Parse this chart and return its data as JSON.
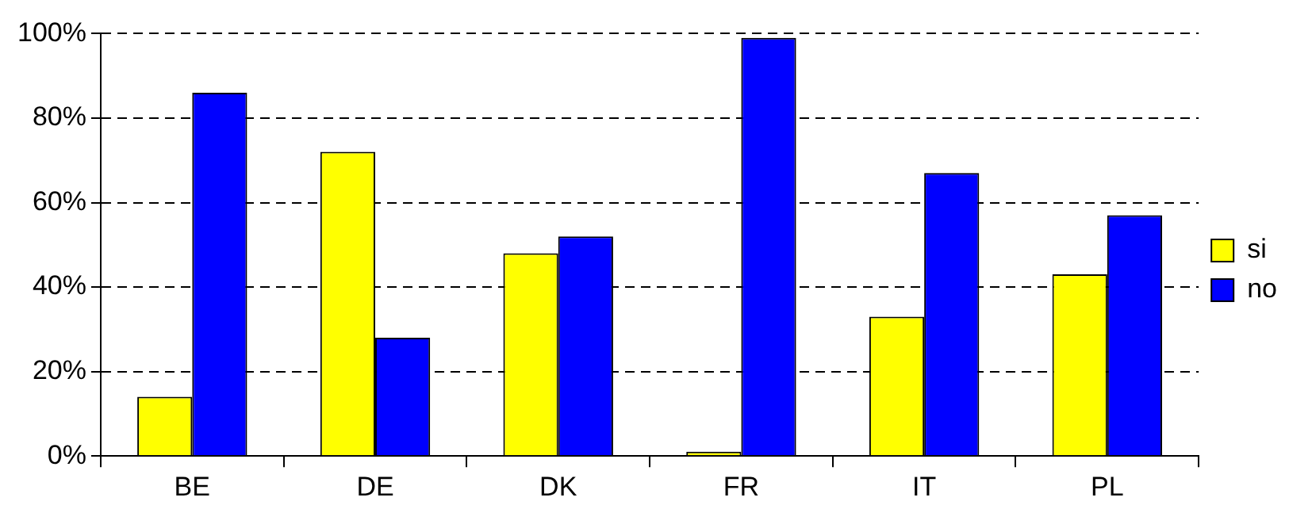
{
  "chart_data": {
    "type": "bar",
    "categories": [
      "BE",
      "DE",
      "DK",
      "FR",
      "IT",
      "PL"
    ],
    "series": [
      {
        "name": "si",
        "color": "#ffff00",
        "values": [
          14,
          72,
          48,
          1,
          33,
          43
        ]
      },
      {
        "name": "no",
        "color": "#0000ff",
        "values": [
          86,
          28,
          52,
          99,
          67,
          57
        ]
      }
    ],
    "ylim": [
      0,
      100
    ],
    "yticks": [
      {
        "value": 0,
        "label": "0%"
      },
      {
        "value": 20,
        "label": "20%"
      },
      {
        "value": 40,
        "label": "40%"
      },
      {
        "value": 60,
        "label": "60%"
      },
      {
        "value": 80,
        "label": "80%"
      },
      {
        "value": 100,
        "label": "100%"
      }
    ],
    "grid": "y",
    "legend": "right"
  }
}
